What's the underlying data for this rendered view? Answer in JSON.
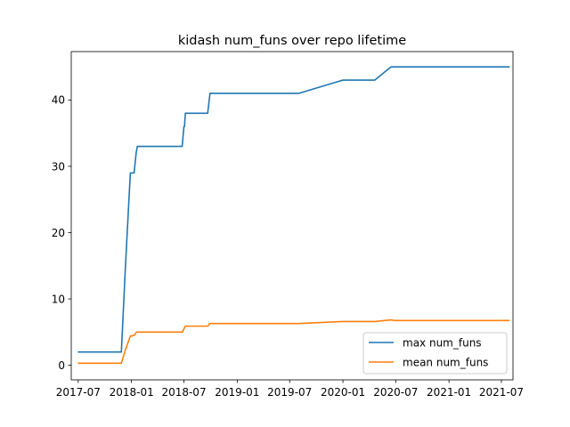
{
  "chart_data": {
    "type": "line",
    "title": "kidash num_funs over repo lifetime",
    "xlabel": "",
    "ylabel": "",
    "xlim": [
      "2017-06-07",
      "2021-08-10"
    ],
    "ylim": [
      -2.2,
      47.3
    ],
    "x_ticks": [
      "2017-07-01",
      "2018-01-01",
      "2018-07-01",
      "2019-01-01",
      "2019-07-01",
      "2020-01-01",
      "2020-07-01",
      "2021-01-01",
      "2021-07-01"
    ],
    "x_tick_labels": [
      "2017-07",
      "2018-01",
      "2018-07",
      "2019-01",
      "2019-07",
      "2020-01",
      "2020-07",
      "2021-01",
      "2021-07"
    ],
    "y_ticks": [
      0,
      10,
      20,
      30,
      40
    ],
    "y_tick_labels": [
      "0",
      "10",
      "20",
      "30",
      "40"
    ],
    "grid": false,
    "legend_position": "lower-right",
    "series": [
      {
        "name": "max num_funs",
        "color": "#1f77b4",
        "points": [
          [
            "2017-07-02",
            2
          ],
          [
            "2017-11-27",
            2
          ],
          [
            "2017-12-10",
            14
          ],
          [
            "2017-12-28",
            29
          ],
          [
            "2018-01-10",
            29
          ],
          [
            "2018-01-17",
            32
          ],
          [
            "2018-01-21",
            33
          ],
          [
            "2018-06-25",
            33
          ],
          [
            "2018-07-01",
            36
          ],
          [
            "2018-07-03",
            36
          ],
          [
            "2018-07-06",
            38
          ],
          [
            "2018-09-21",
            38
          ],
          [
            "2018-09-29",
            41
          ],
          [
            "2019-08-01",
            41
          ],
          [
            "2020-01-01",
            43
          ],
          [
            "2020-04-20",
            43
          ],
          [
            "2020-06-15",
            45
          ],
          [
            "2021-07-27",
            45
          ]
        ]
      },
      {
        "name": "mean num_funs",
        "color": "#ff7f0e",
        "points": [
          [
            "2017-07-02",
            0.3
          ],
          [
            "2017-11-27",
            0.3
          ],
          [
            "2017-12-10",
            2.2
          ],
          [
            "2017-12-28",
            4.4
          ],
          [
            "2018-01-10",
            4.5
          ],
          [
            "2018-01-18",
            5.0
          ],
          [
            "2018-06-25",
            5.0
          ],
          [
            "2018-07-06",
            5.9
          ],
          [
            "2018-09-21",
            5.9
          ],
          [
            "2018-09-29",
            6.3
          ],
          [
            "2019-08-01",
            6.3
          ],
          [
            "2020-01-01",
            6.6
          ],
          [
            "2020-04-20",
            6.6
          ],
          [
            "2020-06-15",
            6.85
          ],
          [
            "2020-06-25",
            6.75
          ],
          [
            "2021-07-27",
            6.75
          ]
        ]
      }
    ]
  }
}
